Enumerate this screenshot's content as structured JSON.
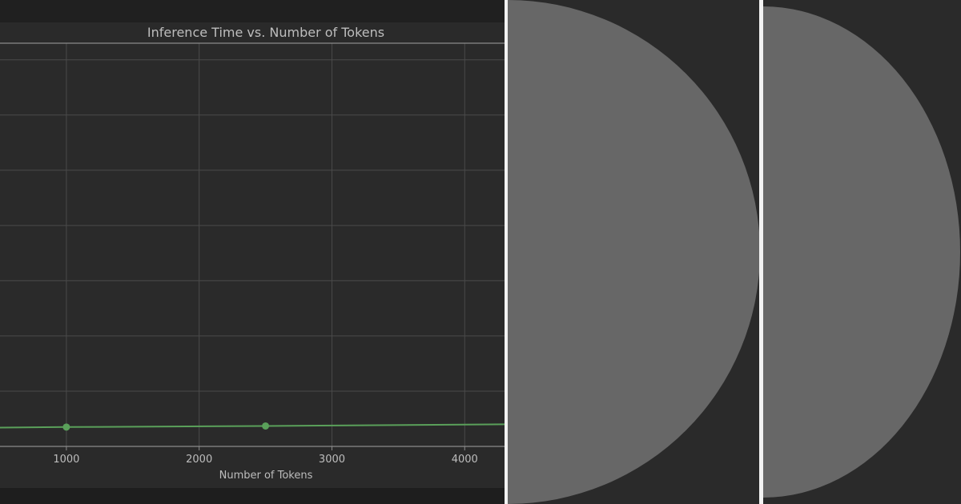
{
  "chart_data": {
    "type": "line",
    "title": "Inference Time vs. Number of Tokens",
    "xlabel": "Number of Tokens",
    "ylabel": "",
    "x_ticks": [
      1000,
      2000,
      3000,
      4000
    ],
    "xlim": [
      500,
      4300
    ],
    "ylim": [
      0,
      7.3
    ],
    "y_gridlines": [
      1,
      2,
      3,
      4,
      5,
      6,
      7
    ],
    "grid": true,
    "series": [
      {
        "color": "#5aa05a",
        "points": [
          {
            "x": 1000,
            "y": 0.35
          },
          {
            "x": 2500,
            "y": 0.37
          },
          {
            "x": 4300,
            "y": 0.4
          }
        ],
        "markers_at": [
          1000,
          2500
        ]
      }
    ]
  },
  "theme": {
    "background": "#2a2a2a",
    "grid_color": "#4a4a4a",
    "text_color": "#bdbdbd",
    "thumbnail_shape_color": "#676767"
  }
}
